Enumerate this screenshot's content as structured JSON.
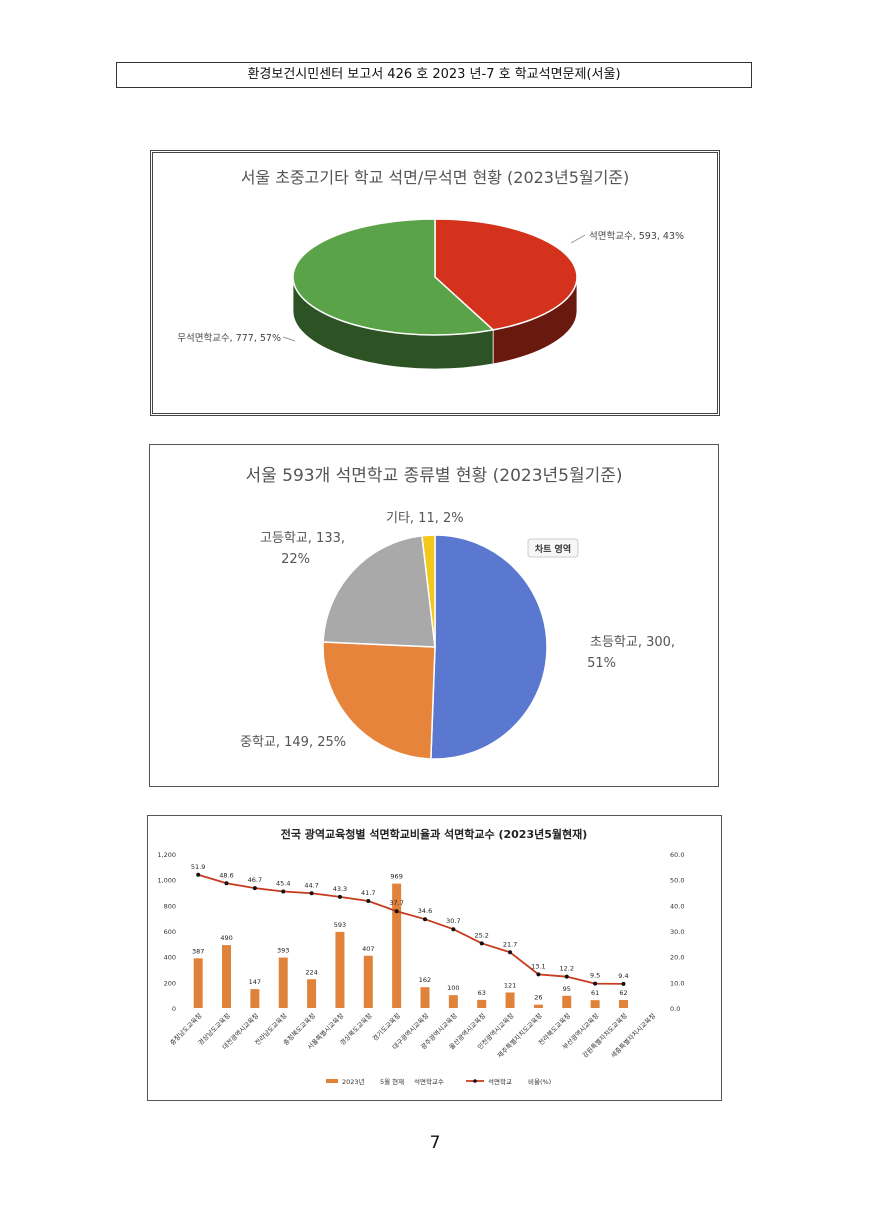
{
  "header": {
    "text": "환경보건시민센터 보고서 426 호 2023 년-7 호 학교석면문제(서울)"
  },
  "page_number": "7",
  "chart_data": [
    {
      "type": "pie",
      "title": "서울 초중고기타 학교 석면/무석면 현황 (2023년5월기준)",
      "slices": [
        {
          "label": "석면학교수, 593, 43%",
          "name": "석면학교수",
          "value": 593,
          "percent": 43,
          "color": "#d4321c"
        },
        {
          "label": "무석면학교수, 777, 57%",
          "name": "무석면학교수",
          "value": 777,
          "percent": 57,
          "color": "#5aa348"
        }
      ],
      "style": "3d"
    },
    {
      "type": "pie",
      "title": "서울 593개 석면학교 종류별 현황 (2023년5월기준)",
      "slices": [
        {
          "label_line1": "초등학교, 300,",
          "label_line2": "51%",
          "name": "초등학교",
          "value": 300,
          "percent": 51,
          "color": "#5b78d0"
        },
        {
          "label_line1": "중학교, 149, 25%",
          "label_line2": "",
          "name": "중학교",
          "value": 149,
          "percent": 25,
          "color": "#e5843a"
        },
        {
          "label_line1": "고등학교, 133,",
          "label_line2": "22%",
          "name": "고등학교",
          "value": 133,
          "percent": 22,
          "color": "#a9a9a9"
        },
        {
          "label_line1": "기타, 11, 2%",
          "label_line2": "",
          "name": "기타",
          "value": 11,
          "percent": 2,
          "color": "#f2c81a"
        }
      ],
      "tooltip": "차트 영역"
    },
    {
      "type": "bar",
      "title": "전국 광역교육청별 석면학교비율과 석면학교수 (2023년5월현재)",
      "categories": [
        "충청남도교육청",
        "경상남도교육청",
        "대전광역시교육청",
        "전라남도교육청",
        "충청북도교육청",
        "서울특별시교육청",
        "경상북도교육청",
        "경기도교육청",
        "대구광역시교육청",
        "광주광역시교육청",
        "울산광역시교육청",
        "인천광역시교육청",
        "제주특별자치도교육청",
        "전라북도교육청",
        "부산광역시교육청",
        "강원특별자치도교육청",
        "세종특별자치시교육청"
      ],
      "series": [
        {
          "name": "2023년 5월 현재 석면학교수",
          "kind": "bar",
          "axis": "left",
          "color": "#e0823a",
          "values": [
            387,
            490,
            147,
            393,
            224,
            593,
            407,
            969,
            162,
            100,
            63,
            121,
            26,
            95,
            61,
            62,
            null
          ]
        },
        {
          "name": "석면학교 비율(%)",
          "kind": "line",
          "axis": "right",
          "color": "#c83a1e",
          "values": [
            51.9,
            48.6,
            46.7,
            45.4,
            44.7,
            43.3,
            41.7,
            37.7,
            34.6,
            30.7,
            25.2,
            21.7,
            13.1,
            12.2,
            9.5,
            9.4,
            null
          ]
        }
      ],
      "y_left": {
        "min": 0,
        "max": 1200,
        "ticks": [
          "0",
          "200",
          "400",
          "600",
          "800",
          "1,000",
          "1,200"
        ]
      },
      "y_right": {
        "min": 0,
        "max": 60,
        "ticks": [
          "0.0",
          "10.0",
          "20.0",
          "30.0",
          "40.0",
          "50.0",
          "60.0"
        ]
      },
      "legend": {
        "bar_label_a": "2023년",
        "bar_label_b": "5월 현재",
        "bar_label_c": "석면학교수",
        "line_label_a": "석면학교",
        "line_label_b": "비율(%)",
        "position": "bottom"
      }
    }
  ]
}
